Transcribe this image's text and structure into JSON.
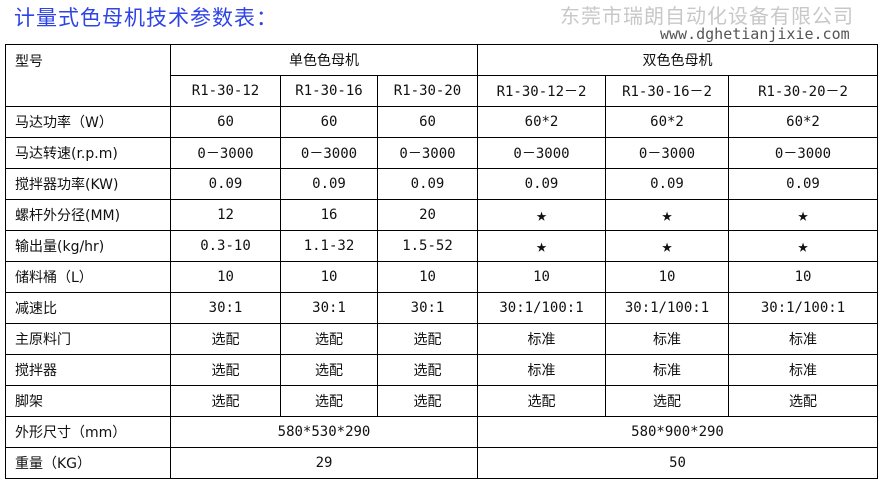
{
  "title": "计量式色母机技术参数表：",
  "header": {
    "model_label": "型号",
    "group_single": "单色色母机",
    "group_double": "双色色母机",
    "models": [
      "R1-30-12",
      "R1-30-16",
      "R1-30-20",
      "R1-30-12－2",
      "R1-30-16－2",
      "R1-30-20－2"
    ]
  },
  "rows": [
    {
      "label": "马达功率（W）",
      "values": [
        "60",
        "60",
        "60",
        "60*2",
        "60*2",
        "60*2"
      ]
    },
    {
      "label": "马达转速(r.p.m)",
      "values": [
        "0－3000",
        "0－3000",
        "0－3000",
        "0－3000",
        "0－3000",
        "0－3000"
      ]
    },
    {
      "label": "搅拌器功率(KW)",
      "values": [
        "0.09",
        "0.09",
        "0.09",
        "0.09",
        "0.09",
        "0.09"
      ]
    },
    {
      "label": "螺杆外分径(MM)",
      "values": [
        "12",
        "16",
        "20",
        "★",
        "★",
        "★"
      ]
    },
    {
      "label": "输出量(kg/hr)",
      "values": [
        "0.3-10",
        "1.1-32",
        "1.5-52",
        "★",
        "★",
        "★"
      ]
    },
    {
      "label": "储料桶（L）",
      "values": [
        "10",
        "10",
        "10",
        "10",
        "10",
        "10"
      ]
    },
    {
      "label": "减速比",
      "values": [
        "30:1",
        "30:1",
        "30:1",
        "30:1/100:1",
        "30:1/100:1",
        "30:1/100:1"
      ]
    },
    {
      "label": "主原料门",
      "values": [
        "选配",
        "选配",
        "选配",
        "标准",
        "标准",
        "标准"
      ]
    },
    {
      "label": "搅拌器",
      "values": [
        "选配",
        "选配",
        "选配",
        "标准",
        "标准",
        "标准"
      ]
    },
    {
      "label": "脚架",
      "values": [
        "选配",
        "选配",
        "选配",
        "选配",
        "选配",
        "选配"
      ]
    }
  ],
  "size_row": {
    "label": "外形尺寸（mm）",
    "single": "580*530*290",
    "double": "580*900*290"
  },
  "weight_row": {
    "label": "重量（KG）",
    "single": "29",
    "double": "50"
  },
  "watermark": {
    "company": "东莞市瑞朗自动化设备有限公司",
    "url": "www.dghetianjixie.com"
  }
}
